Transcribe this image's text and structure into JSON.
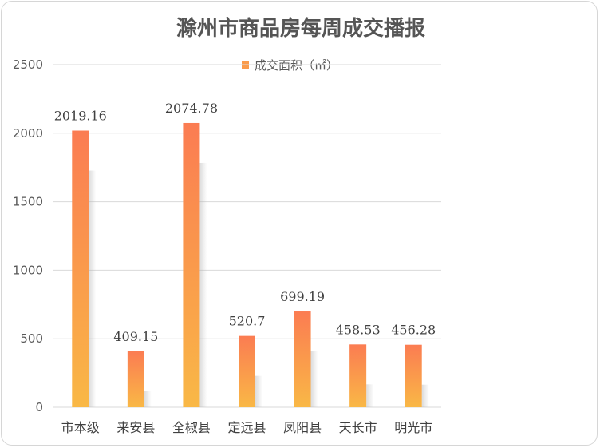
{
  "chart_data": {
    "type": "bar",
    "title": "滁州市商品房每周成交播报",
    "categories": [
      "市本级",
      "来安县",
      "全椒县",
      "定远县",
      "凤阳县",
      "天长市",
      "明光市"
    ],
    "series": [
      {
        "name": "成交面积（㎡）",
        "values": [
          2019.16,
          409.15,
          2074.78,
          520.7,
          699.19,
          458.53,
          456.28
        ],
        "value_labels": [
          "2019.16",
          "409.15",
          "2074.78",
          "520.7",
          "699.19",
          "458.53",
          "456.28"
        ]
      }
    ],
    "y_ticks": [
      "0",
      "500",
      "1000",
      "1500",
      "2000",
      "2500"
    ],
    "ylim": [
      0,
      2500
    ],
    "xlabel": "",
    "ylabel": "",
    "grid": true,
    "legend_position": "top",
    "colors": {
      "bar_top": "#FB7C52",
      "bar_bottom": "#F9B846",
      "grid": "#d9d9d9"
    }
  }
}
